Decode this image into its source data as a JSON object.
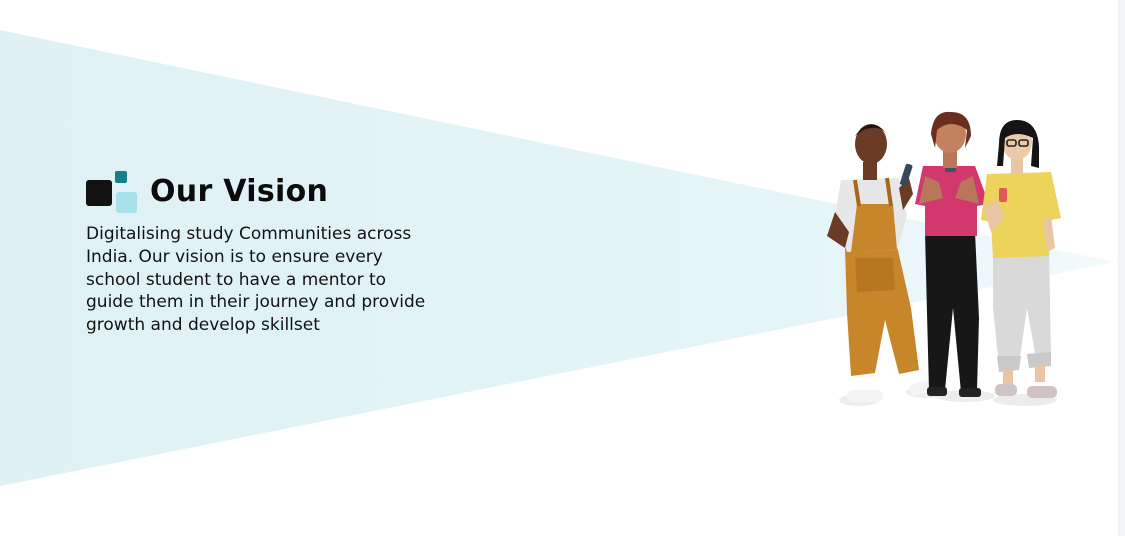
{
  "vision": {
    "title": "Our Vision",
    "body": "Digitalising study Communities across India. Our vision is to ensure every school student to have a mentor to guide them in their journey and provide growth and develop skillset"
  },
  "colors": {
    "beam": "#e0f2f5",
    "logo_dark": "#111111",
    "logo_teal": "#157f8c",
    "logo_light": "#a9e1ea"
  },
  "illustration": {
    "icon": "people-group-illustration"
  }
}
